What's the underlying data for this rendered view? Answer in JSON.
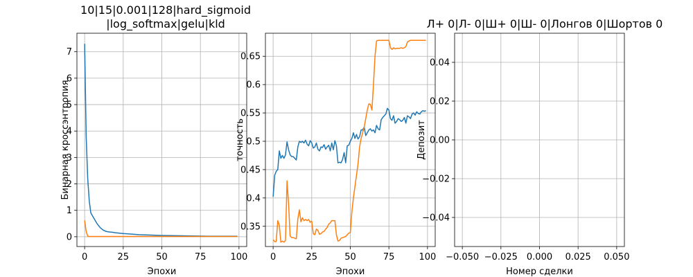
{
  "figure": {
    "title_left_line1": "10|15|0.001|128|hard_sigmoid",
    "title_left_line2": "|log_softmax|gelu|kld",
    "title_right": "Л+ 0|Л- 0|Ш+ 0|Ш- 0|Лонгов 0|Шортов 0"
  },
  "colors": {
    "series_blue": "#1f77b4",
    "series_orange": "#ff7f0e",
    "grid": "#b0b0b0"
  },
  "chart_data": [
    {
      "type": "line",
      "xlabel": "Эпохи",
      "ylabel": "Бинарная кроссэнтропия",
      "xlim": [
        -5,
        105
      ],
      "ylim": [
        -0.37,
        7.7
      ],
      "xticks": [
        0,
        25,
        50,
        75,
        100
      ],
      "yticks": [
        0,
        1,
        2,
        3,
        4,
        5,
        6,
        7
      ],
      "grid": true,
      "series": [
        {
          "color": "#1f77b4",
          "x": [
            0,
            1,
            2,
            3,
            4,
            5,
            6,
            7,
            8,
            10,
            12,
            14,
            16,
            18,
            20,
            25,
            30,
            35,
            40,
            45,
            50,
            60,
            70,
            80,
            90,
            99
          ],
          "y": [
            7.3,
            3.8,
            2.2,
            1.35,
            0.9,
            0.8,
            0.7,
            0.6,
            0.5,
            0.35,
            0.25,
            0.2,
            0.18,
            0.17,
            0.15,
            0.12,
            0.1,
            0.08,
            0.07,
            0.06,
            0.05,
            0.04,
            0.03,
            0.02,
            0.02,
            0.02
          ]
        },
        {
          "color": "#ff7f0e",
          "x": [
            0,
            1,
            2,
            3,
            5,
            10,
            20,
            40,
            60,
            80,
            99
          ],
          "y": [
            0.62,
            0.2,
            0.02,
            0.01,
            0.01,
            0.01,
            0.01,
            0.01,
            0.01,
            0.01,
            0.01
          ]
        }
      ]
    },
    {
      "type": "line",
      "xlabel": "Эпохи",
      "ylabel": "точность",
      "xlim": [
        -5,
        105
      ],
      "ylim": [
        0.3143,
        0.6906
      ],
      "xticks": [
        0,
        25,
        50,
        75,
        100
      ],
      "yticks": [
        0.35,
        0.4,
        0.45,
        0.5,
        0.55,
        0.6,
        0.65
      ],
      "grid": true,
      "series": [
        {
          "color": "#1f77b4",
          "x": [
            0,
            1,
            2,
            3,
            4,
            5,
            6,
            7,
            8,
            9,
            10,
            11,
            12,
            13,
            14,
            15,
            16,
            17,
            18,
            19,
            20,
            21,
            22,
            23,
            24,
            25,
            26,
            27,
            28,
            29,
            30,
            31,
            32,
            33,
            34,
            35,
            36,
            37,
            38,
            39,
            40,
            41,
            42,
            43,
            44,
            45,
            46,
            47,
            48,
            49,
            50,
            51,
            52,
            53,
            54,
            55,
            56,
            57,
            58,
            59,
            60,
            61,
            62,
            63,
            64,
            65,
            66,
            67,
            68,
            69,
            70,
            71,
            72,
            73,
            74,
            75,
            76,
            77,
            78,
            79,
            80,
            81,
            82,
            83,
            84,
            85,
            86,
            87,
            88,
            89,
            90,
            91,
            92,
            93,
            94,
            95,
            96,
            97,
            98,
            99
          ],
          "y": [
            0.402,
            0.44,
            0.447,
            0.45,
            0.483,
            0.47,
            0.475,
            0.47,
            0.476,
            0.499,
            0.485,
            0.476,
            0.473,
            0.473,
            0.47,
            0.467,
            0.49,
            0.5,
            0.498,
            0.5,
            0.497,
            0.502,
            0.495,
            0.492,
            0.501,
            0.497,
            0.488,
            0.49,
            0.497,
            0.486,
            0.483,
            0.49,
            0.489,
            0.494,
            0.486,
            0.49,
            0.493,
            0.483,
            0.497,
            0.485,
            0.501,
            0.492,
            0.462,
            0.463,
            0.462,
            0.468,
            0.48,
            0.462,
            0.492,
            0.493,
            0.5,
            0.505,
            0.515,
            0.505,
            0.512,
            0.504,
            0.508,
            0.52,
            0.52,
            0.525,
            0.51,
            0.515,
            0.52,
            0.522,
            0.518,
            0.52,
            0.515,
            0.528,
            0.522,
            0.52,
            0.538,
            0.542,
            0.545,
            0.548,
            0.558,
            0.555,
            0.54,
            0.537,
            0.545,
            0.532,
            0.535,
            0.54,
            0.538,
            0.535,
            0.537,
            0.542,
            0.532,
            0.545,
            0.543,
            0.54,
            0.548,
            0.55,
            0.546,
            0.552,
            0.549,
            0.548,
            0.552,
            0.554,
            0.553,
            0.554
          ]
        },
        {
          "color": "#ff7f0e",
          "x": [
            0,
            1,
            2,
            3,
            4,
            5,
            6,
            7,
            8,
            9,
            10,
            11,
            12,
            13,
            14,
            15,
            16,
            17,
            18,
            19,
            20,
            21,
            22,
            23,
            24,
            25,
            26,
            27,
            28,
            29,
            30,
            31,
            32,
            33,
            34,
            35,
            36,
            37,
            38,
            39,
            40,
            41,
            42,
            43,
            44,
            45,
            46,
            47,
            48,
            49,
            50,
            51,
            52,
            53,
            54,
            55,
            56,
            57,
            58,
            59,
            60,
            61,
            62,
            63,
            64,
            65,
            66,
            67,
            68,
            69,
            70,
            71,
            72,
            73,
            74,
            75,
            76,
            77,
            78,
            79,
            80,
            81,
            82,
            83,
            84,
            85,
            86,
            87,
            88,
            89,
            90,
            91,
            92,
            93,
            94,
            95,
            96,
            97,
            98,
            99
          ],
          "y": [
            0.326,
            0.323,
            0.323,
            0.36,
            0.352,
            0.322,
            0.324,
            0.322,
            0.325,
            0.43,
            0.39,
            0.333,
            0.33,
            0.33,
            0.329,
            0.328,
            0.363,
            0.379,
            0.358,
            0.365,
            0.36,
            0.362,
            0.36,
            0.362,
            0.357,
            0.359,
            0.337,
            0.335,
            0.345,
            0.343,
            0.336,
            0.337,
            0.34,
            0.341,
            0.345,
            0.348,
            0.354,
            0.356,
            0.36,
            0.36,
            0.36,
            0.335,
            0.324,
            0.325,
            0.329,
            0.33,
            0.331,
            0.332,
            0.335,
            0.338,
            0.339,
            0.375,
            0.4,
            0.42,
            0.44,
            0.46,
            0.49,
            0.505,
            0.515,
            0.525,
            0.54,
            0.555,
            0.566,
            0.565,
            0.555,
            0.6,
            0.65,
            0.677,
            0.678,
            0.678,
            0.678,
            0.678,
            0.678,
            0.678,
            0.678,
            0.678,
            0.665,
            0.662,
            0.665,
            0.663,
            0.664,
            0.664,
            0.664,
            0.665,
            0.664,
            0.665,
            0.667,
            0.675,
            0.677,
            0.678,
            0.678,
            0.678,
            0.678,
            0.678,
            0.678,
            0.678,
            0.678,
            0.678,
            0.678,
            0.678
          ]
        }
      ]
    },
    {
      "type": "line",
      "xlabel": "Номер сделки",
      "ylabel": "Депозит",
      "xlim": [
        -0.055,
        0.055
      ],
      "ylim": [
        -0.055,
        0.055
      ],
      "xticks": [
        -0.05,
        -0.025,
        0,
        0.025,
        0.05
      ],
      "yticks": [
        -0.04,
        -0.02,
        0,
        0.02,
        0.04
      ],
      "xtick_labels": [
        "−0.050",
        "−0.025",
        "0.000",
        "0.025",
        "0.050"
      ],
      "ytick_labels": [
        "−0.04",
        "−0.02",
        "0.00",
        "0.02",
        "0.04"
      ],
      "grid": true,
      "series": []
    }
  ]
}
